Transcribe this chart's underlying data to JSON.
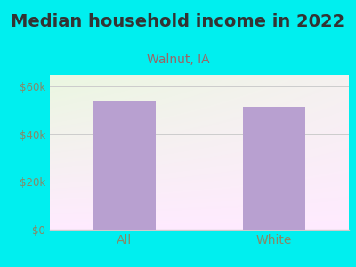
{
  "title": "Median household income in 2022",
  "subtitle": "Walnut, IA",
  "categories": [
    "All",
    "White"
  ],
  "values": [
    54000,
    51500
  ],
  "bar_color": "#b8a0d0",
  "background_color": "#00EFEF",
  "title_fontsize": 14,
  "subtitle_fontsize": 10,
  "tick_label_color": "#888866",
  "subtitle_color": "#996666",
  "yticks": [
    0,
    20000,
    40000,
    60000
  ],
  "ytick_labels": [
    "$0",
    "$20k",
    "$40k",
    "$60k"
  ],
  "ylim": [
    0,
    65000
  ],
  "grid_color": "#cccccc",
  "title_color": "#333333"
}
